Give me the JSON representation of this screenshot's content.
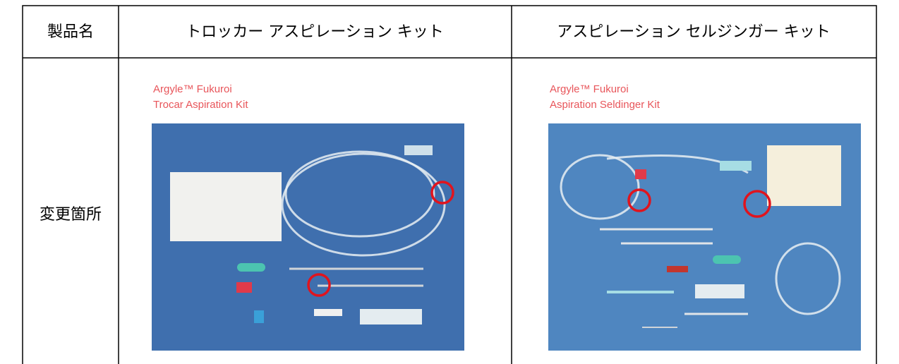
{
  "table": {
    "header": [
      "製品名",
      "トロッカー アスピレーション キット",
      "アスピレーション セルジンガー キット"
    ],
    "row_label": "変更箇所",
    "images": [
      {
        "caption": [
          "Argyle™ Fukuroi",
          "Trocar Aspiration Kit"
        ]
      },
      {
        "caption": [
          "Argyle™ Fukuroi",
          "Aspiration Seldinger Kit"
        ]
      }
    ]
  }
}
